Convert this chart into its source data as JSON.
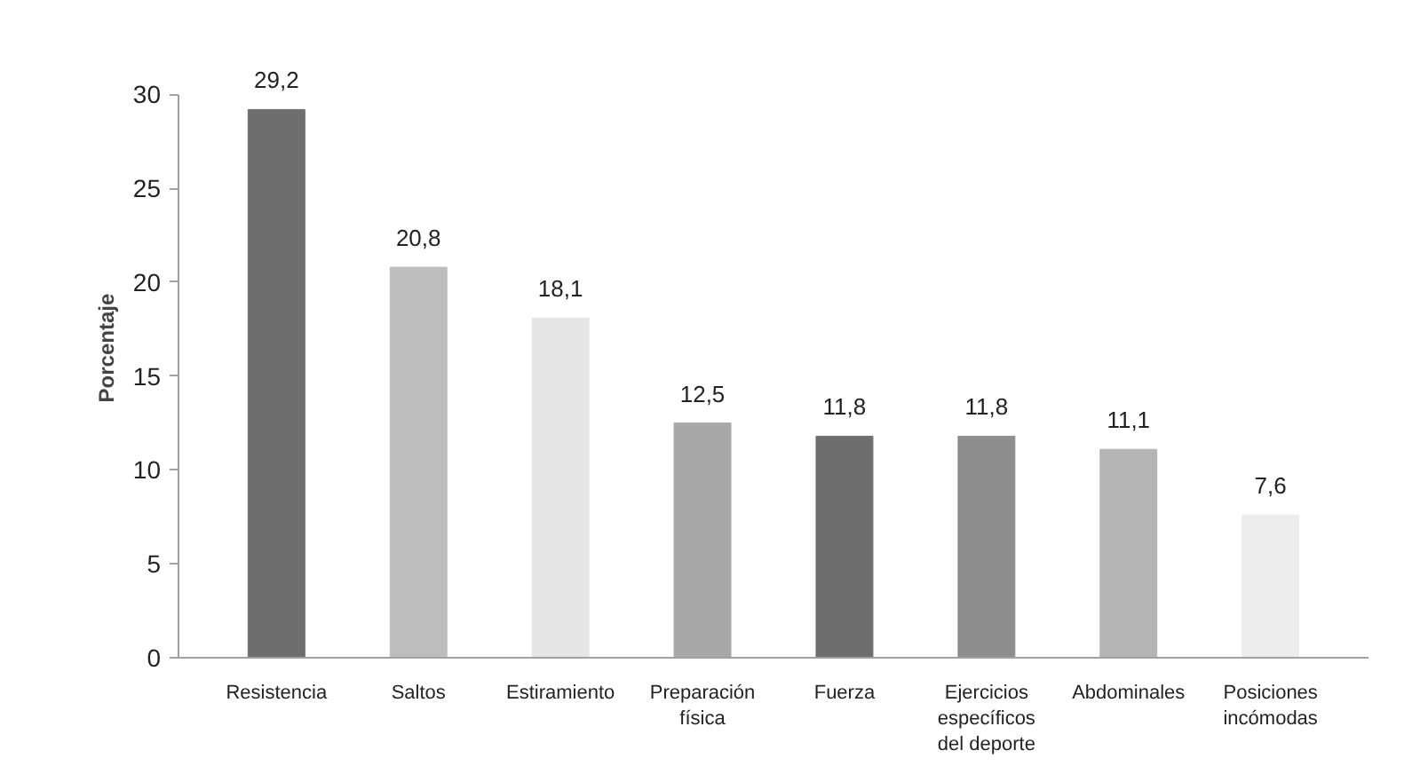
{
  "chart_data": {
    "type": "bar",
    "ylabel": "Porcentaje",
    "categories": [
      "Resistencia",
      "Saltos",
      "Estiramiento",
      "Preparación\nfísica",
      "Fuerza",
      "Ejercicios\nespecíficos\ndel deporte",
      "Abdominales",
      "Posiciones\nincómodas"
    ],
    "values": [
      29.2,
      20.8,
      18.1,
      12.5,
      11.8,
      11.8,
      11.1,
      7.6
    ],
    "value_labels": [
      "29,2",
      "20,8",
      "18,1",
      "12,5",
      "11,8",
      "11,8",
      "11,1",
      "7,6"
    ],
    "colors": [
      "#6e6e6e",
      "#bdbdbd",
      "#e6e6e6",
      "#a8a8a8",
      "#6e6e6e",
      "#8e8e8e",
      "#b5b5b5",
      "#ececec"
    ],
    "ylim": [
      0,
      30
    ],
    "yticks": [
      0,
      5,
      10,
      15,
      20,
      25,
      30
    ],
    "grid": false
  }
}
